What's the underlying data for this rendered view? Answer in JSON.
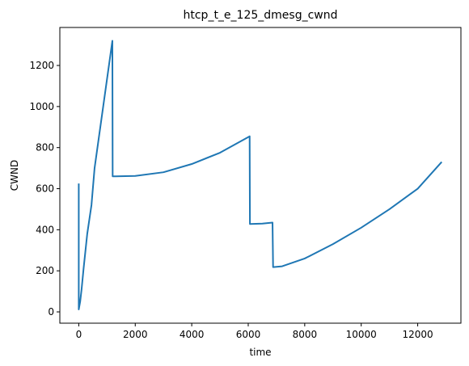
{
  "chart_data": {
    "type": "line",
    "title": "htcp_t_e_125_dmesg_cwnd",
    "xlabel": "time",
    "ylabel": "CWND",
    "xlim": [
      -670,
      13530
    ],
    "ylim": [
      -55,
      1385
    ],
    "xticks": [
      0,
      2000,
      4000,
      6000,
      8000,
      10000,
      12000
    ],
    "yticks": [
      0,
      200,
      400,
      600,
      800,
      1000,
      1200
    ],
    "grid": false,
    "color": "#1f77b4",
    "series": [
      {
        "x": [
          0,
          0,
          50,
          100,
          170,
          300,
          450,
          560,
          1190,
          1200,
          1300,
          2000,
          3000,
          4000,
          5000,
          6050,
          6060,
          6500,
          6860,
          6880,
          7200,
          8000,
          9000,
          10000,
          11000,
          12000,
          12850
        ],
        "y": [
          625,
          12,
          50,
          110,
          210,
          380,
          520,
          700,
          1320,
          660,
          660,
          662,
          680,
          720,
          775,
          855,
          428,
          430,
          435,
          218,
          222,
          260,
          330,
          410,
          500,
          600,
          730
        ]
      }
    ]
  }
}
